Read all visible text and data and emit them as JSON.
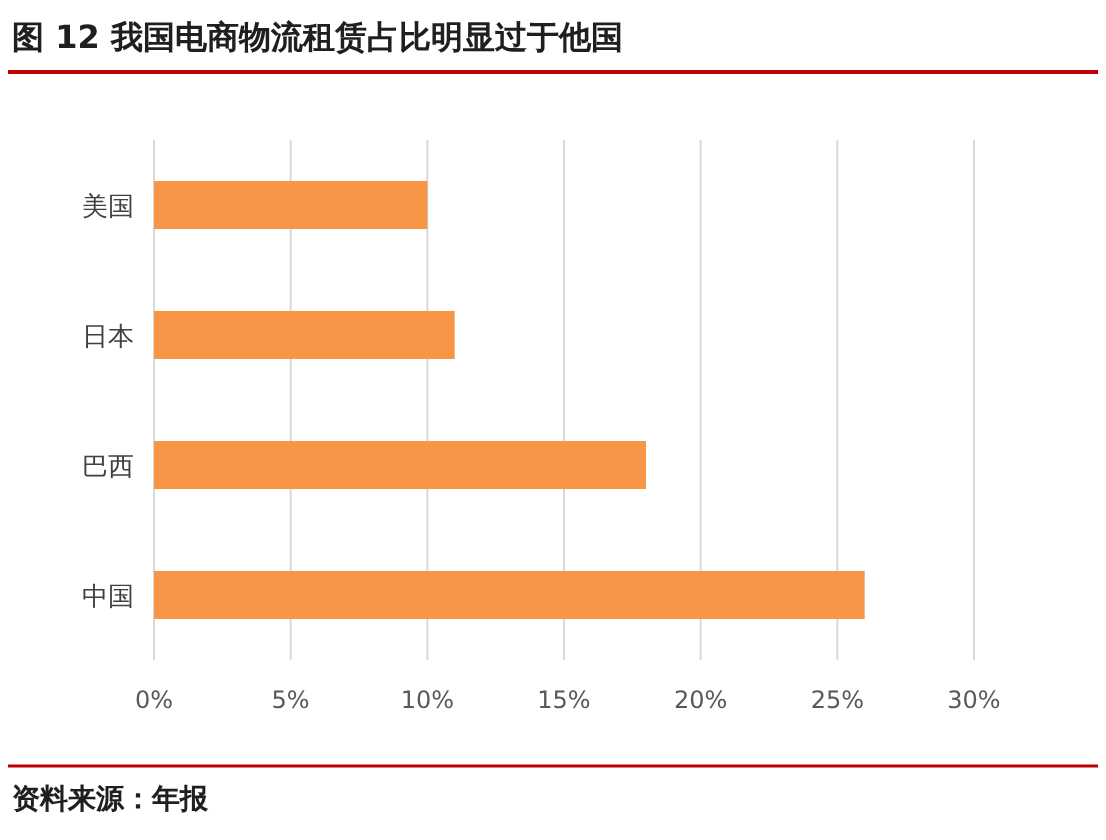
{
  "chart_data": {
    "type": "bar",
    "orientation": "horizontal",
    "title": "图 12  我国电商物流租赁占比明显过于他国",
    "categories": [
      "美国",
      "日本",
      "巴西",
      "中国"
    ],
    "values": [
      10,
      11,
      18,
      26
    ],
    "color": "#f79646",
    "xlim": [
      0,
      30
    ],
    "xticks": [
      {
        "value": 0,
        "label": "0%"
      },
      {
        "value": 5,
        "label": "5%"
      },
      {
        "value": 10,
        "label": "10%"
      },
      {
        "value": 15,
        "label": "15%"
      },
      {
        "value": 20,
        "label": "20%"
      },
      {
        "value": 25,
        "label": "25%"
      },
      {
        "value": 30,
        "label": "30%"
      }
    ],
    "grid": "x",
    "annotations": [
      "资料来源：年报"
    ]
  }
}
